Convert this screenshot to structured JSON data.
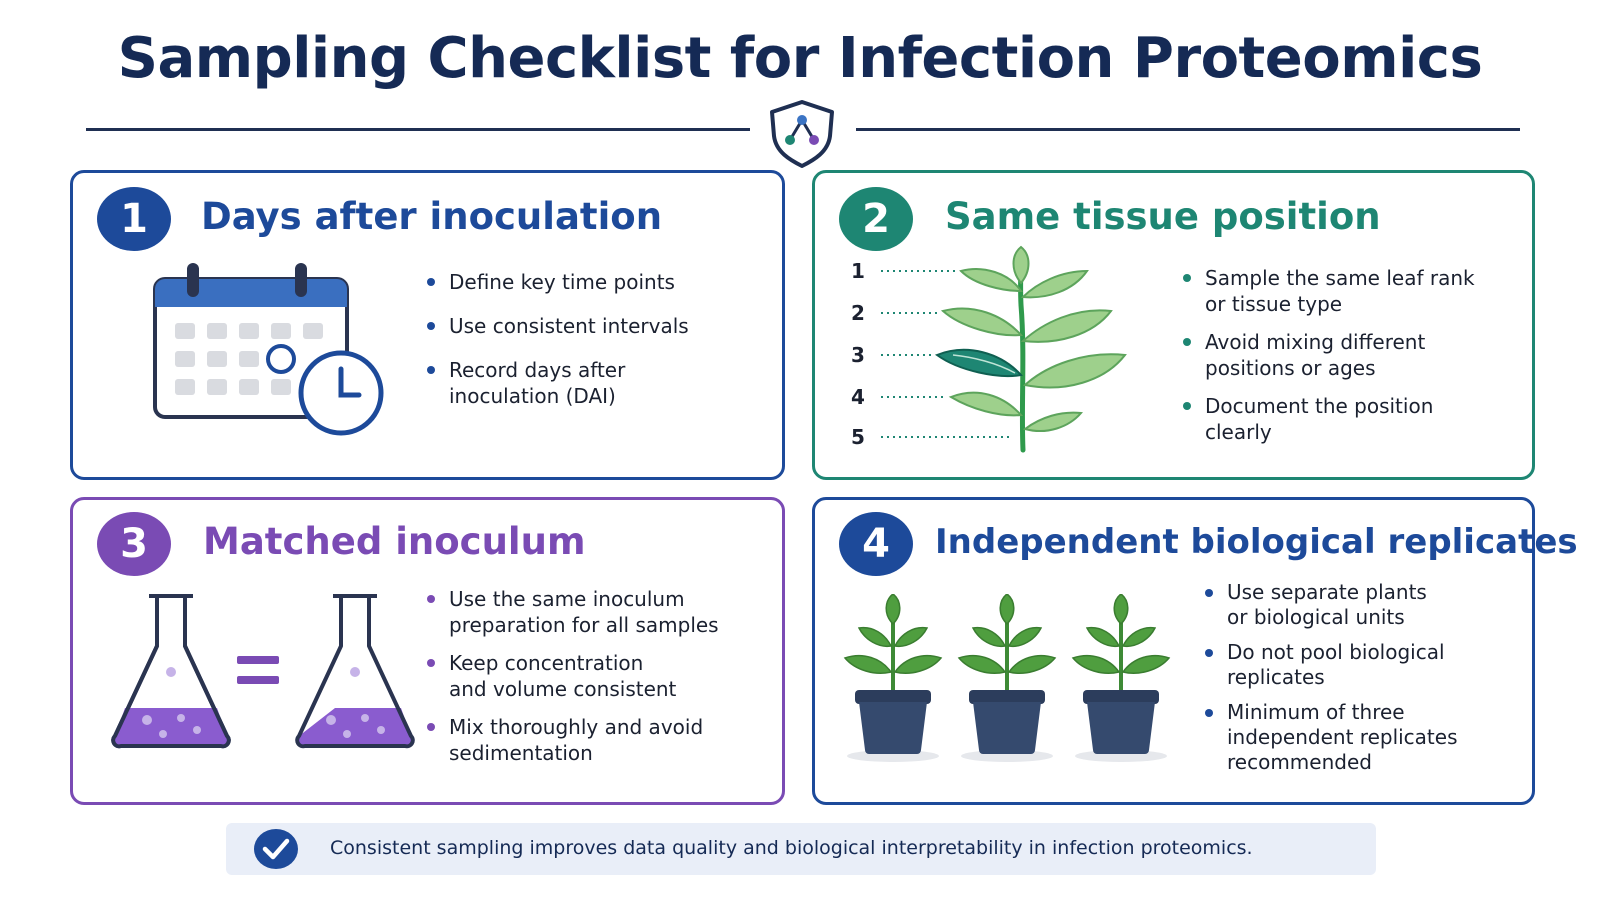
{
  "title": "Sampling Checklist for Infection Proteomics",
  "cards": [
    {
      "number": "1",
      "heading": "Days after inoculation",
      "accent": "#1d4a9a",
      "icon": "calendar-clock-icon",
      "bullets": [
        "Define key time points",
        "Use consistent intervals",
        "Record days after\ninoculation (DAI)"
      ]
    },
    {
      "number": "2",
      "heading": "Same tissue position",
      "accent": "#1e8673",
      "icon": "plant-leaf-positions-icon",
      "leaf_positions": [
        "1",
        "2",
        "3",
        "4",
        "5"
      ],
      "bullets": [
        "Sample the same leaf rank\nor tissue type",
        "Avoid mixing different\npositions or ages",
        "Document the position\nclearly"
      ]
    },
    {
      "number": "3",
      "heading": "Matched inoculum",
      "accent": "#7a4bb4",
      "icon": "flask-equal-flask-icon",
      "bullets": [
        "Use the same inoculum\npreparation for all samples",
        "Keep concentration\nand volume consistent",
        "Mix thoroughly and avoid\nsedimentation"
      ]
    },
    {
      "number": "4",
      "heading": "Independent biological replicates",
      "accent": "#1d4a9a",
      "icon": "potted-plants-icon",
      "bullets": [
        "Use separate plants\nor biological units",
        "Do not pool biological\nreplicates",
        "Minimum of three\nindependent replicates\nrecommended"
      ]
    }
  ],
  "footer": {
    "text": "Consistent sampling improves data quality and biological interpretability in infection proteomics.",
    "icon": "checkmark-icon"
  }
}
